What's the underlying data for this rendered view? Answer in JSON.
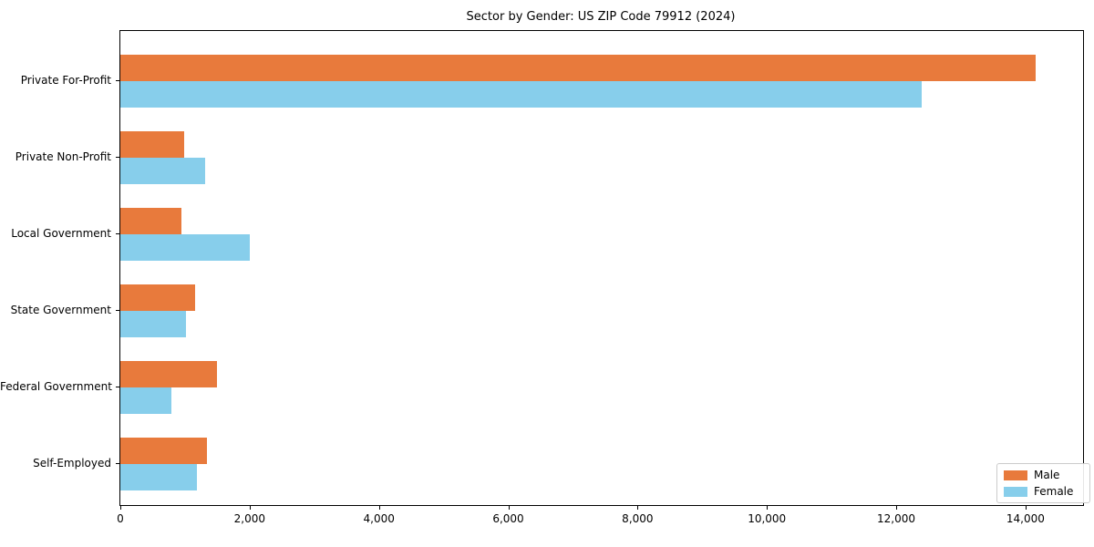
{
  "chart_data": {
    "type": "bar",
    "orientation": "horizontal",
    "title": "Sector by Gender: US ZIP Code 79912 (2024)",
    "categories": [
      "Private For-Profit",
      "Private Non-Profit",
      "Local Government",
      "State Government",
      "Federal Government",
      "Self-Employed"
    ],
    "series": [
      {
        "name": "Male",
        "color": "#e87a3c",
        "values": [
          14150,
          990,
          950,
          1160,
          1490,
          1340
        ]
      },
      {
        "name": "Female",
        "color": "#87ceeb",
        "values": [
          12400,
          1310,
          2000,
          1010,
          790,
          1180
        ]
      }
    ],
    "xlabel": "",
    "ylabel": "",
    "xlim": [
      0,
      14890
    ],
    "xticks": [
      0,
      2000,
      4000,
      6000,
      8000,
      10000,
      12000,
      14000
    ],
    "xtick_labels": [
      "0",
      "2,000",
      "4,000",
      "6,000",
      "8,000",
      "10,000",
      "12,000",
      "14,000"
    ],
    "grid": false,
    "legend_position": "lower right",
    "axis_color": "#000000",
    "background_color": "#ffffff"
  }
}
